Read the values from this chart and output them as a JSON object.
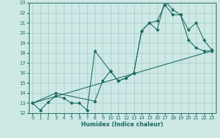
{
  "xlabel": "Humidex (Indice chaleur)",
  "xlim": [
    -0.5,
    23.5
  ],
  "ylim": [
    12,
    23
  ],
  "xticks": [
    0,
    1,
    2,
    3,
    4,
    5,
    6,
    7,
    8,
    9,
    10,
    11,
    12,
    13,
    14,
    15,
    16,
    17,
    18,
    19,
    20,
    21,
    22,
    23
  ],
  "yticks": [
    12,
    13,
    14,
    15,
    16,
    17,
    18,
    19,
    20,
    21,
    22,
    23
  ],
  "background_color": "#cde8e5",
  "grid_color": "#a8cfcc",
  "line_color": "#1a6b5a",
  "line1_x": [
    0,
    1,
    2,
    3,
    4,
    5,
    6,
    7,
    8,
    10,
    11,
    12,
    13,
    14,
    15,
    16,
    17,
    18,
    19,
    20,
    21,
    22,
    23
  ],
  "line1_y": [
    13,
    12.3,
    13.1,
    13.7,
    13.5,
    13.0,
    13.0,
    12.3,
    18.2,
    16.2,
    15.2,
    15.5,
    16.0,
    20.2,
    21.0,
    20.3,
    23.2,
    22.3,
    21.8,
    19.3,
    18.5,
    18.2,
    18.2
  ],
  "line2_x": [
    0,
    3,
    8,
    9,
    10,
    11,
    12,
    13,
    14,
    15,
    16,
    17,
    18,
    19,
    20,
    21,
    22,
    23
  ],
  "line2_y": [
    13,
    14.0,
    13.2,
    15.2,
    16.2,
    15.2,
    15.5,
    16.0,
    20.2,
    21.0,
    21.2,
    22.8,
    21.8,
    21.8,
    20.3,
    21.0,
    19.3,
    18.3
  ],
  "line3_x": [
    0,
    23
  ],
  "line3_y": [
    13,
    18.2
  ]
}
